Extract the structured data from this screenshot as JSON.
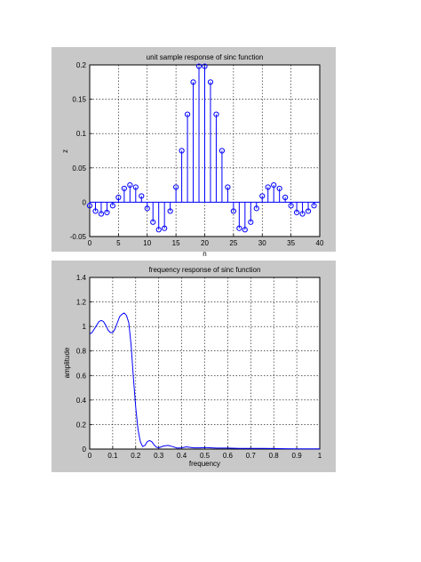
{
  "colors": {
    "figure_bg": "#c8c8c8",
    "axes_bg": "#ffffff",
    "line": "#0000ff",
    "grid": "#000000"
  },
  "chart_data": [
    {
      "type": "stem",
      "title": "unit sample response of sinc function",
      "xlabel": "n",
      "ylabel": "z",
      "xlim": [
        0,
        40
      ],
      "ylim": [
        -0.05,
        0.2
      ],
      "xticks": [
        "0",
        "5",
        "10",
        "15",
        "20",
        "25",
        "30",
        "35",
        "40"
      ],
      "yticks": [
        "-0.05",
        "0",
        "0.05",
        "0.1",
        "0.15",
        "0.2"
      ],
      "grid": true,
      "marker": "circle",
      "x": [
        0,
        1,
        2,
        3,
        4,
        5,
        6,
        7,
        8,
        9,
        10,
        11,
        12,
        13,
        14,
        15,
        16,
        17,
        18,
        19,
        20,
        21,
        22,
        23,
        24,
        25,
        26,
        27,
        28,
        29,
        30,
        31,
        32,
        33,
        34,
        35,
        36,
        37,
        38,
        39
      ],
      "y": [
        -0.005,
        -0.013,
        -0.017,
        -0.015,
        -0.005,
        0.007,
        0.02,
        0.025,
        0.022,
        0.009,
        -0.009,
        -0.029,
        -0.04,
        -0.038,
        -0.013,
        0.022,
        0.075,
        0.128,
        0.175,
        0.198,
        0.198,
        0.175,
        0.128,
        0.075,
        0.022,
        -0.013,
        -0.038,
        -0.04,
        -0.029,
        -0.009,
        0.009,
        0.022,
        0.025,
        0.02,
        0.007,
        -0.005,
        -0.015,
        -0.017,
        -0.013,
        -0.005
      ]
    },
    {
      "type": "line",
      "title": "frequency response of sinc function",
      "xlabel": "frequency",
      "ylabel": "amplitude",
      "xlim": [
        0,
        1
      ],
      "ylim": [
        0,
        1.4
      ],
      "xticks": [
        "0",
        "0.1",
        "0.2",
        "0.3",
        "0.4",
        "0.5",
        "0.6",
        "0.7",
        "0.8",
        "0.9",
        "1"
      ],
      "yticks": [
        "0",
        "0.2",
        "0.4",
        "0.6",
        "0.8",
        "1",
        "1.2",
        "1.4"
      ],
      "grid": true,
      "x": [
        0,
        0.01,
        0.02,
        0.03,
        0.04,
        0.05,
        0.06,
        0.07,
        0.08,
        0.09,
        0.1,
        0.11,
        0.12,
        0.13,
        0.14,
        0.15,
        0.16,
        0.17,
        0.18,
        0.19,
        0.2,
        0.21,
        0.22,
        0.23,
        0.24,
        0.25,
        0.26,
        0.27,
        0.28,
        0.29,
        0.3,
        0.32,
        0.34,
        0.36,
        0.38,
        0.4,
        0.42,
        0.45,
        0.48,
        0.5,
        0.55,
        0.6,
        0.65,
        0.7,
        0.75,
        0.8,
        0.85,
        0.9,
        0.95,
        1.0
      ],
      "y": [
        0.94,
        0.95,
        0.98,
        1.01,
        1.04,
        1.05,
        1.04,
        1.01,
        0.97,
        0.95,
        0.95,
        0.98,
        1.03,
        1.08,
        1.1,
        1.11,
        1.09,
        1.03,
        0.85,
        0.58,
        0.34,
        0.16,
        0.06,
        0.02,
        0.03,
        0.06,
        0.07,
        0.06,
        0.035,
        0.015,
        0.01,
        0.025,
        0.03,
        0.02,
        0.008,
        0.01,
        0.018,
        0.01,
        0.01,
        0.012,
        0.008,
        0.008,
        0.006,
        0.006,
        0.005,
        0.004,
        0.003,
        0.002,
        0.002,
        0.002
      ]
    }
  ]
}
